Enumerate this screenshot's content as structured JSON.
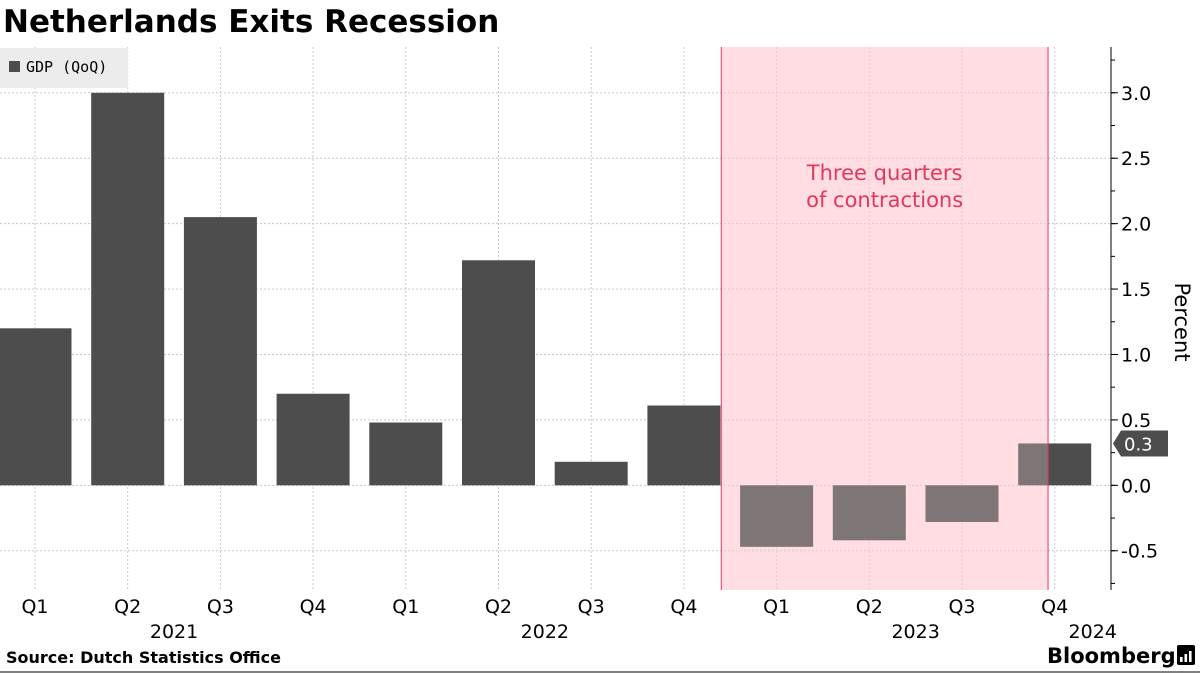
{
  "chart_data": {
    "type": "bar",
    "title": "Netherlands Exits Recession",
    "categories": [
      "Q1",
      "Q2",
      "Q3",
      "Q4",
      "Q1",
      "Q2",
      "Q3",
      "Q4",
      "Q1",
      "Q2",
      "Q3",
      "Q4"
    ],
    "years": [
      {
        "label": "2021",
        "start": 0,
        "end": 3
      },
      {
        "label": "2022",
        "start": 4,
        "end": 7
      },
      {
        "label": "2023",
        "start": 8,
        "end": 11
      },
      {
        "label": "2024",
        "start": 11,
        "end": 11
      }
    ],
    "series": [
      {
        "name": "GDP (QoQ)",
        "color": "#4d4d4d",
        "values": [
          1.2,
          3.0,
          2.05,
          0.7,
          0.48,
          1.72,
          0.18,
          0.61,
          -0.47,
          -0.42,
          -0.28,
          0.32
        ]
      }
    ],
    "ylabel": "Percent",
    "ylim": [
      -0.8,
      3.35
    ],
    "yticks": [
      -0.5,
      0.0,
      0.5,
      1.0,
      1.5,
      2.0,
      2.5,
      3.0
    ],
    "yticklabels": [
      "-0.5",
      "0.0",
      "0.5",
      "1.0",
      "1.5",
      "2.0",
      "2.5",
      "3.0"
    ],
    "grid": true,
    "legend_position": "top-left",
    "highlight": {
      "from_index": 7,
      "to_index": 11,
      "color": "#ffdde3",
      "line_color": "#e3385c",
      "annotation": [
        "Three quarters",
        "of contractions"
      ]
    },
    "last_value_badge": "0.3",
    "source": "Source: Dutch Statistics Office",
    "brand": "Bloomberg"
  }
}
